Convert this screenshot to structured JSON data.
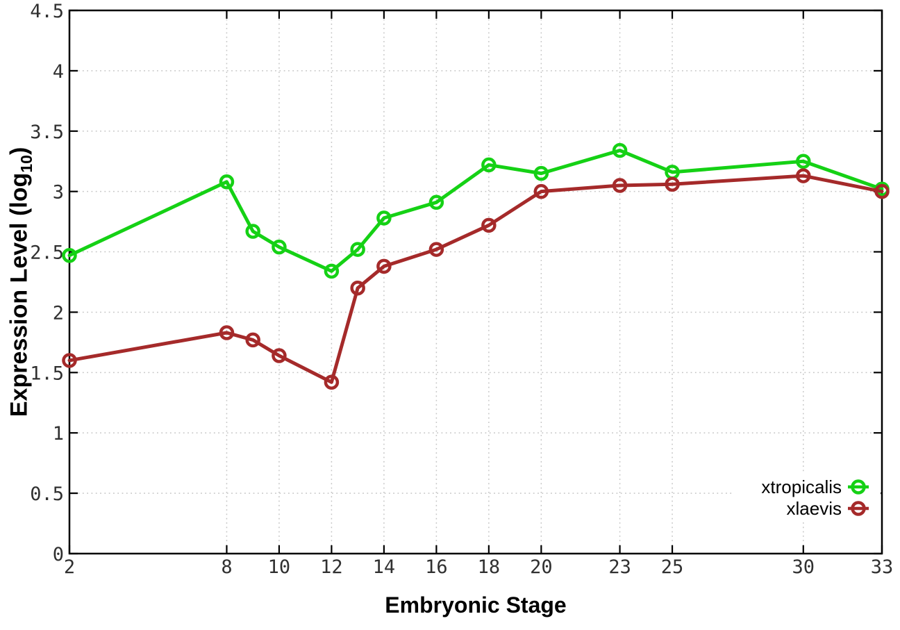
{
  "chart_data": {
    "type": "line",
    "xlabel": "Embryonic Stage",
    "ylabel_prefix": "Expression Level (log",
    "ylabel_sub": "10",
    "ylabel_suffix": ")",
    "xlim": [
      2,
      33
    ],
    "ylim": [
      0,
      4.5
    ],
    "x_ticks": [
      2,
      8,
      10,
      12,
      14,
      16,
      18,
      20,
      23,
      25,
      30,
      33
    ],
    "y_ticks": [
      0,
      0.5,
      1,
      1.5,
      2,
      2.5,
      3,
      3.5,
      4,
      4.5
    ],
    "grid": true,
    "grid_style": "dotted",
    "legend_position": "bottom-right",
    "x": [
      2,
      8,
      9,
      10,
      12,
      13,
      14,
      16,
      18,
      20,
      23,
      25,
      30,
      33
    ],
    "series": [
      {
        "name": "xtropicalis",
        "color": "#15d115",
        "marker": "open-circle",
        "values": [
          2.47,
          3.08,
          2.67,
          2.54,
          2.34,
          2.52,
          2.78,
          2.91,
          3.22,
          3.15,
          3.34,
          3.16,
          3.25,
          3.02
        ]
      },
      {
        "name": "xlaevis",
        "color": "#a52a2a",
        "marker": "open-circle",
        "values": [
          1.6,
          1.83,
          1.77,
          1.64,
          1.42,
          2.2,
          2.38,
          2.52,
          2.72,
          3.0,
          3.05,
          3.06,
          3.13,
          3.0
        ]
      }
    ]
  },
  "colors": {
    "background": "#ffffff",
    "plot_border": "#000000",
    "grid": "#c4c4c4",
    "tick_label": "#303030",
    "legend_text": "#000000"
  }
}
